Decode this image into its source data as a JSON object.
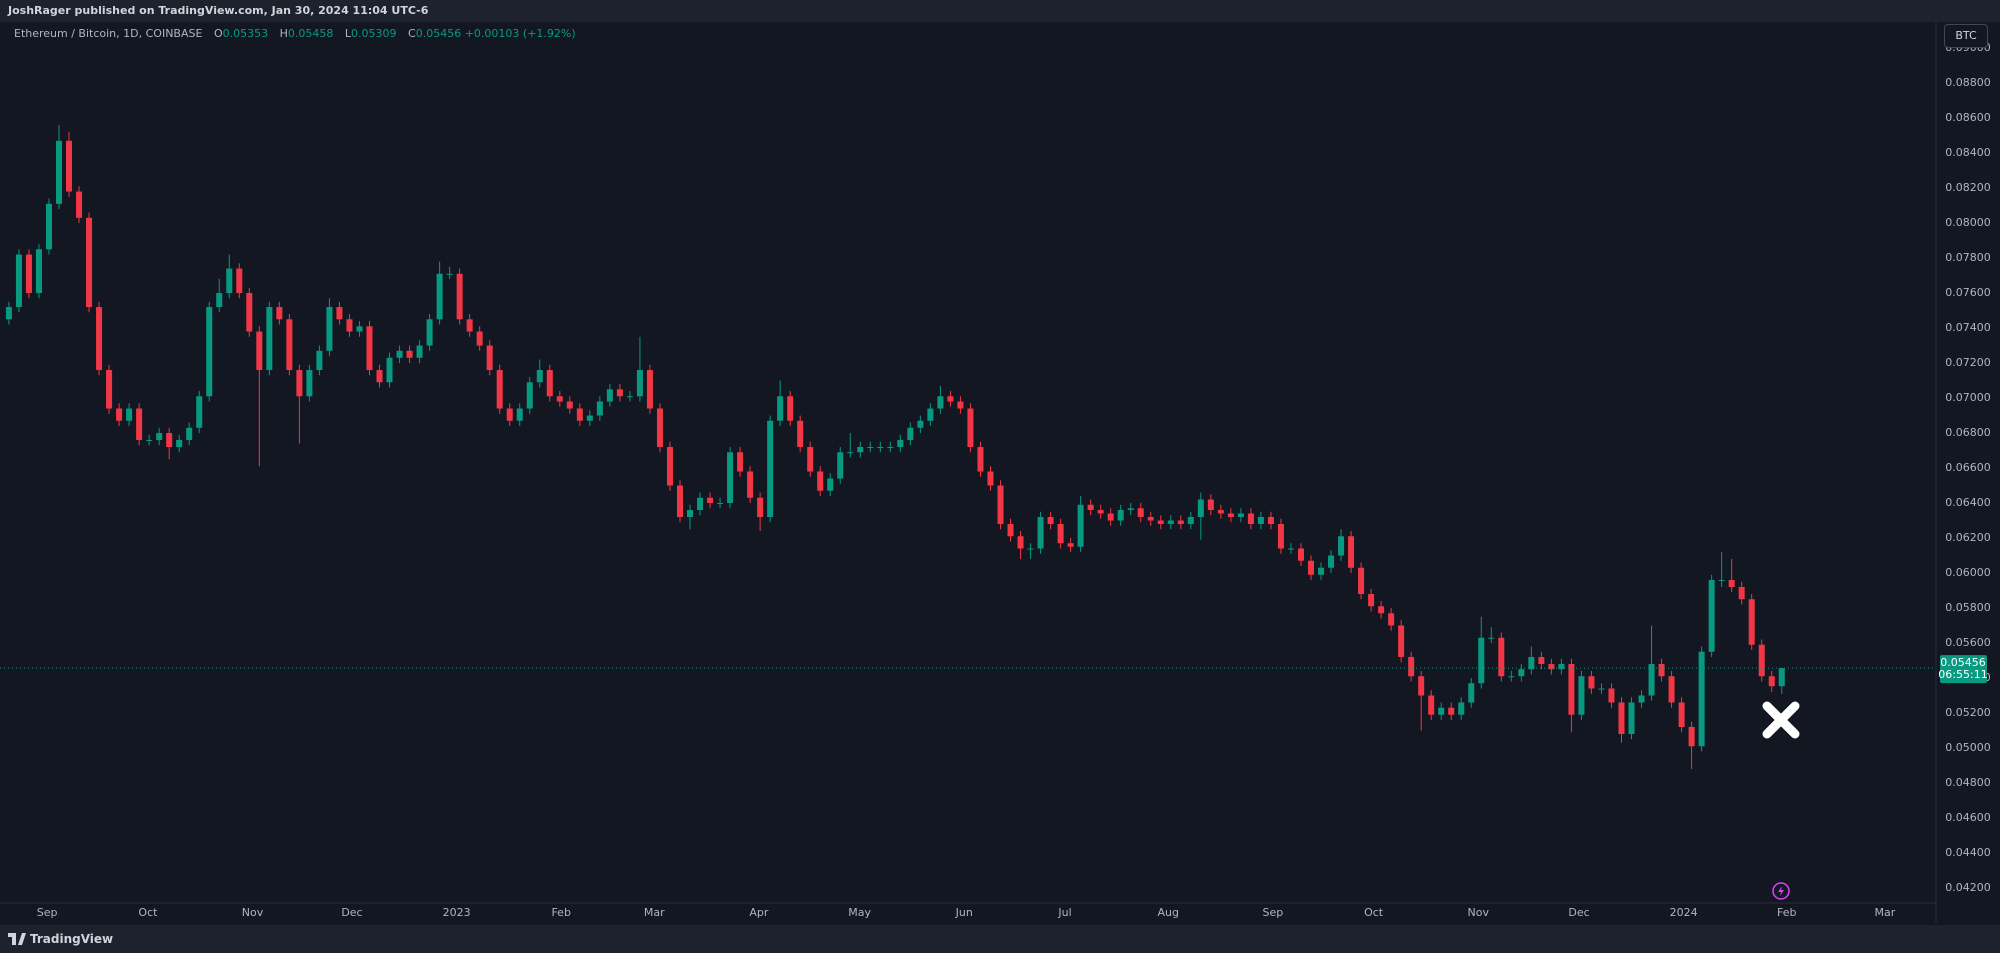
{
  "header": {
    "byline": "JoshRager published on TradingView.com, Jan 30, 2024 11:04 UTC-6"
  },
  "legend": {
    "symbol": "Ethereum / Bitcoin, 1D, COINBASE",
    "open_key": "O",
    "high_key": "H",
    "low_key": "L",
    "close_key": "C",
    "change": "+0.00103 (+1.92%)"
  },
  "currency_button": "BTC",
  "price_tag": {
    "countdown": "06:55:11"
  },
  "footer": {
    "brand": "TradingView"
  },
  "chart_data": {
    "type": "candlestick",
    "up_color": "#089981",
    "down_color": "#f23645",
    "open": [
      0.0745,
      0.0752,
      0.0782,
      0.076,
      0.0785,
      0.0811,
      0.0847,
      0.0818,
      0.0803,
      0.0752,
      0.0716,
      0.0694,
      0.0687,
      0.0694,
      0.0676,
      0.0676,
      0.068,
      0.0672,
      0.0676,
      0.0683,
      0.0701,
      0.0752,
      0.076,
      0.0774,
      0.076,
      0.0738,
      0.0716,
      0.0752,
      0.0745,
      0.0716,
      0.0701,
      0.0716,
      0.0727,
      0.0752,
      0.0745,
      0.0738,
      0.0741,
      0.0716,
      0.0709,
      0.0723,
      0.0727,
      0.0723,
      0.073,
      0.0745,
      0.0771,
      0.0771,
      0.0745,
      0.0738,
      0.073,
      0.0716,
      0.0694,
      0.0687,
      0.0694,
      0.0709,
      0.0716,
      0.0701,
      0.0698,
      0.0694,
      0.0687,
      0.069,
      0.0698,
      0.0705,
      0.0701,
      0.0701,
      0.0716,
      0.0694,
      0.0672,
      0.065,
      0.0632,
      0.0636,
      0.0643,
      0.064,
      0.064,
      0.0669,
      0.0658,
      0.0643,
      0.0632,
      0.0687,
      0.0701,
      0.0687,
      0.0672,
      0.0658,
      0.0647,
      0.0654,
      0.0669,
      0.0669,
      0.0672,
      0.0672,
      0.0672,
      0.0672,
      0.0676,
      0.0683,
      0.0687,
      0.0694,
      0.0701,
      0.0698,
      0.0694,
      0.0672,
      0.0658,
      0.065,
      0.0628,
      0.0621,
      0.0614,
      0.0614,
      0.0632,
      0.0628,
      0.0617,
      0.0615,
      0.0639,
      0.0636,
      0.0634,
      0.063,
      0.0636,
      0.0637,
      0.0632,
      0.063,
      0.0628,
      0.063,
      0.0628,
      0.0632,
      0.0642,
      0.0636,
      0.0634,
      0.0632,
      0.0634,
      0.0628,
      0.0632,
      0.0628,
      0.0614,
      0.0614,
      0.0607,
      0.0599,
      0.0603,
      0.061,
      0.0621,
      0.0603,
      0.0588,
      0.0581,
      0.0577,
      0.057,
      0.0552,
      0.0541,
      0.053,
      0.0519,
      0.0523,
      0.0519,
      0.0526,
      0.0537,
      0.0563,
      0.0563,
      0.0541,
      0.0541,
      0.0545,
      0.0552,
      0.0548,
      0.0545,
      0.0548,
      0.0519,
      0.0541,
      0.0534,
      0.0534,
      0.0526,
      0.0508,
      0.0526,
      0.053,
      0.0548,
      0.0541,
      0.0526,
      0.0512,
      0.0501,
      0.0555,
      0.0596,
      0.0596,
      0.0592,
      0.0585,
      0.0559,
      0.0541,
      0.05353
    ],
    "high": [
      0.0755,
      0.0785,
      0.0785,
      0.0788,
      0.0814,
      0.0856,
      0.0852,
      0.0821,
      0.0806,
      0.0755,
      0.0719,
      0.0697,
      0.0697,
      0.0697,
      0.0679,
      0.0683,
      0.0683,
      0.0679,
      0.0686,
      0.0704,
      0.0755,
      0.0768,
      0.0782,
      0.0777,
      0.0763,
      0.0741,
      0.0755,
      0.0755,
      0.0748,
      0.0719,
      0.0719,
      0.073,
      0.0757,
      0.0755,
      0.0748,
      0.0744,
      0.0744,
      0.0719,
      0.0726,
      0.073,
      0.073,
      0.0733,
      0.0748,
      0.0778,
      0.0775,
      0.0774,
      0.0748,
      0.0741,
      0.0733,
      0.0719,
      0.0697,
      0.0697,
      0.0712,
      0.0722,
      0.0719,
      0.0704,
      0.0701,
      0.0697,
      0.0693,
      0.0701,
      0.0708,
      0.0708,
      0.0704,
      0.0735,
      0.0719,
      0.0697,
      0.0675,
      0.0653,
      0.0639,
      0.0646,
      0.0646,
      0.0643,
      0.0672,
      0.0672,
      0.0661,
      0.0646,
      0.069,
      0.071,
      0.0704,
      0.069,
      0.0675,
      0.0661,
      0.0657,
      0.0672,
      0.068,
      0.0675,
      0.0675,
      0.0675,
      0.0675,
      0.0679,
      0.0686,
      0.069,
      0.0697,
      0.0707,
      0.0704,
      0.0701,
      0.0697,
      0.0675,
      0.0661,
      0.0653,
      0.0631,
      0.0624,
      0.0617,
      0.0635,
      0.0635,
      0.0631,
      0.062,
      0.0644,
      0.0642,
      0.0639,
      0.0637,
      0.0639,
      0.064,
      0.064,
      0.0635,
      0.0633,
      0.0633,
      0.0633,
      0.0635,
      0.0646,
      0.0645,
      0.0639,
      0.0637,
      0.0637,
      0.0637,
      0.0635,
      0.0635,
      0.0631,
      0.0617,
      0.0617,
      0.061,
      0.0606,
      0.0613,
      0.0625,
      0.0624,
      0.0606,
      0.0591,
      0.0584,
      0.058,
      0.0573,
      0.0555,
      0.0544,
      0.0533,
      0.0526,
      0.0526,
      0.0529,
      0.054,
      0.0575,
      0.0569,
      0.0566,
      0.0544,
      0.0548,
      0.0558,
      0.0555,
      0.0551,
      0.0551,
      0.0551,
      0.0544,
      0.0544,
      0.0537,
      0.0537,
      0.0529,
      0.0529,
      0.0533,
      0.057,
      0.0551,
      0.0544,
      0.0529,
      0.0515,
      0.0558,
      0.0599,
      0.0612,
      0.0608,
      0.0595,
      0.0588,
      0.0562,
      0.0544,
      0.05458
    ],
    "low": [
      0.0742,
      0.0749,
      0.0757,
      0.0757,
      0.0782,
      0.0808,
      0.0815,
      0.08,
      0.0749,
      0.0713,
      0.0691,
      0.0684,
      0.0684,
      0.0673,
      0.0673,
      0.0673,
      0.0665,
      0.0669,
      0.0673,
      0.068,
      0.0698,
      0.0749,
      0.0757,
      0.0757,
      0.0735,
      0.0661,
      0.0713,
      0.0742,
      0.0713,
      0.0674,
      0.0698,
      0.0713,
      0.0724,
      0.0742,
      0.0735,
      0.0735,
      0.0713,
      0.0706,
      0.0706,
      0.072,
      0.072,
      0.072,
      0.0727,
      0.0742,
      0.0768,
      0.0742,
      0.0735,
      0.0727,
      0.0713,
      0.0691,
      0.0684,
      0.0684,
      0.0691,
      0.0706,
      0.0698,
      0.0695,
      0.0691,
      0.0684,
      0.0684,
      0.0687,
      0.0695,
      0.0698,
      0.0698,
      0.0698,
      0.0691,
      0.0669,
      0.0647,
      0.0629,
      0.0625,
      0.0633,
      0.0637,
      0.0637,
      0.0637,
      0.0655,
      0.064,
      0.0624,
      0.0629,
      0.0684,
      0.0684,
      0.0669,
      0.0655,
      0.0644,
      0.0644,
      0.0651,
      0.0666,
      0.0666,
      0.0669,
      0.0669,
      0.0669,
      0.0669,
      0.0673,
      0.068,
      0.0684,
      0.0691,
      0.0695,
      0.0691,
      0.0669,
      0.0655,
      0.0647,
      0.0625,
      0.0618,
      0.0608,
      0.0608,
      0.0611,
      0.0625,
      0.0614,
      0.0612,
      0.0612,
      0.0633,
      0.0631,
      0.0627,
      0.0627,
      0.0633,
      0.0629,
      0.0627,
      0.0625,
      0.0625,
      0.0625,
      0.0625,
      0.0619,
      0.0633,
      0.0631,
      0.0629,
      0.0629,
      0.0625,
      0.0625,
      0.0625,
      0.0611,
      0.0611,
      0.0604,
      0.0596,
      0.0596,
      0.06,
      0.0607,
      0.06,
      0.0585,
      0.0578,
      0.0574,
      0.0567,
      0.0549,
      0.0538,
      0.051,
      0.0516,
      0.0516,
      0.0516,
      0.0516,
      0.0523,
      0.0534,
      0.056,
      0.0538,
      0.0538,
      0.0538,
      0.0542,
      0.0545,
      0.0542,
      0.0542,
      0.0509,
      0.0516,
      0.0531,
      0.0531,
      0.0523,
      0.0503,
      0.0505,
      0.0523,
      0.0527,
      0.0538,
      0.0523,
      0.0509,
      0.0488,
      0.0498,
      0.0552,
      0.0592,
      0.0589,
      0.0582,
      0.0556,
      0.0538,
      0.0532,
      0.05309
    ],
    "close": [
      0.0752,
      0.0782,
      0.076,
      0.0785,
      0.0811,
      0.0847,
      0.0818,
      0.0803,
      0.0752,
      0.0716,
      0.0694,
      0.0687,
      0.0694,
      0.0676,
      0.0676,
      0.068,
      0.0672,
      0.0676,
      0.0683,
      0.0701,
      0.0752,
      0.076,
      0.0774,
      0.076,
      0.0738,
      0.0716,
      0.0752,
      0.0745,
      0.0716,
      0.0701,
      0.0716,
      0.0727,
      0.0752,
      0.0745,
      0.0738,
      0.0741,
      0.0716,
      0.0709,
      0.0723,
      0.0727,
      0.0723,
      0.073,
      0.0745,
      0.0771,
      0.0771,
      0.0745,
      0.0738,
      0.073,
      0.0716,
      0.0694,
      0.0687,
      0.0694,
      0.0709,
      0.0716,
      0.0701,
      0.0698,
      0.0694,
      0.0687,
      0.069,
      0.0698,
      0.0705,
      0.0701,
      0.0701,
      0.0716,
      0.0694,
      0.0672,
      0.065,
      0.0632,
      0.0636,
      0.0643,
      0.064,
      0.064,
      0.0669,
      0.0658,
      0.0643,
      0.0632,
      0.0687,
      0.0701,
      0.0687,
      0.0672,
      0.0658,
      0.0647,
      0.0654,
      0.0669,
      0.0669,
      0.0672,
      0.0672,
      0.0672,
      0.0672,
      0.0676,
      0.0683,
      0.0687,
      0.0694,
      0.0701,
      0.0698,
      0.0694,
      0.0672,
      0.0658,
      0.065,
      0.0628,
      0.0621,
      0.0614,
      0.0614,
      0.0632,
      0.0628,
      0.0617,
      0.0615,
      0.0639,
      0.0636,
      0.0634,
      0.063,
      0.0636,
      0.0637,
      0.0632,
      0.063,
      0.0628,
      0.063,
      0.0628,
      0.0632,
      0.0642,
      0.0636,
      0.0634,
      0.0632,
      0.0634,
      0.0628,
      0.0632,
      0.0628,
      0.0614,
      0.0614,
      0.0607,
      0.0599,
      0.0603,
      0.061,
      0.0621,
      0.0603,
      0.0588,
      0.0581,
      0.0577,
      0.057,
      0.0552,
      0.0541,
      0.053,
      0.0519,
      0.0523,
      0.0519,
      0.0526,
      0.0537,
      0.0563,
      0.0563,
      0.0541,
      0.0541,
      0.0545,
      0.0552,
      0.0548,
      0.0545,
      0.0548,
      0.0519,
      0.0541,
      0.0534,
      0.0534,
      0.0526,
      0.0508,
      0.0526,
      0.053,
      0.0548,
      0.0541,
      0.0526,
      0.0512,
      0.0501,
      0.0555,
      0.0596,
      0.0596,
      0.0592,
      0.0585,
      0.0559,
      0.0541,
      0.05353,
      0.05456
    ],
    "xlim": [
      -0.89,
      192.4
    ],
    "xticks": [
      {
        "value": 3.82,
        "label": "Sep"
      },
      {
        "value": 13.88,
        "label": "Oct"
      },
      {
        "value": 24.32,
        "label": "Nov"
      },
      {
        "value": 34.25,
        "label": "Dec"
      },
      {
        "value": 44.7,
        "label": "2023"
      },
      {
        "value": 55.14,
        "label": "Feb"
      },
      {
        "value": 64.43,
        "label": "Mar"
      },
      {
        "value": 74.88,
        "label": "Apr"
      },
      {
        "value": 84.94,
        "label": "May"
      },
      {
        "value": 95.38,
        "label": "Jun"
      },
      {
        "value": 105.44,
        "label": "Jul"
      },
      {
        "value": 115.75,
        "label": "Aug"
      },
      {
        "value": 126.19,
        "label": "Sep"
      },
      {
        "value": 136.25,
        "label": "Oct"
      },
      {
        "value": 146.7,
        "label": "Nov"
      },
      {
        "value": 156.76,
        "label": "Dec"
      },
      {
        "value": 167.2,
        "label": "2024"
      },
      {
        "value": 177.5,
        "label": "Feb"
      },
      {
        "value": 187.3,
        "label": "Mar"
      }
    ],
    "ylim": [
      0.04114,
      0.09149
    ],
    "yticks": [
      {
        "value": 0.042,
        "label": "0.04200"
      },
      {
        "value": 0.044,
        "label": "0.04400"
      },
      {
        "value": 0.046,
        "label": "0.04600"
      },
      {
        "value": 0.048,
        "label": "0.04800"
      },
      {
        "value": 0.05,
        "label": "0.05000"
      },
      {
        "value": 0.052,
        "label": "0.05200"
      },
      {
        "value": 0.054,
        "label": "0.05400"
      },
      {
        "value": 0.056,
        "label": "0.05600"
      },
      {
        "value": 0.058,
        "label": "0.05800"
      },
      {
        "value": 0.06,
        "label": "0.06000"
      },
      {
        "value": 0.062,
        "label": "0.06200"
      },
      {
        "value": 0.064,
        "label": "0.06400"
      },
      {
        "value": 0.066,
        "label": "0.06600"
      },
      {
        "value": 0.068,
        "label": "0.06800"
      },
      {
        "value": 0.07,
        "label": "0.07000"
      },
      {
        "value": 0.072,
        "label": "0.07200"
      },
      {
        "value": 0.074,
        "label": "0.07400"
      },
      {
        "value": 0.076,
        "label": "0.07600"
      },
      {
        "value": 0.078,
        "label": "0.07800"
      },
      {
        "value": 0.08,
        "label": "0.08000"
      },
      {
        "value": 0.082,
        "label": "0.08200"
      },
      {
        "value": 0.084,
        "label": "0.08400"
      },
      {
        "value": 0.086,
        "label": "0.08600"
      },
      {
        "value": 0.088,
        "label": "0.08800"
      },
      {
        "value": 0.09,
        "label": "0.09000"
      }
    ]
  }
}
